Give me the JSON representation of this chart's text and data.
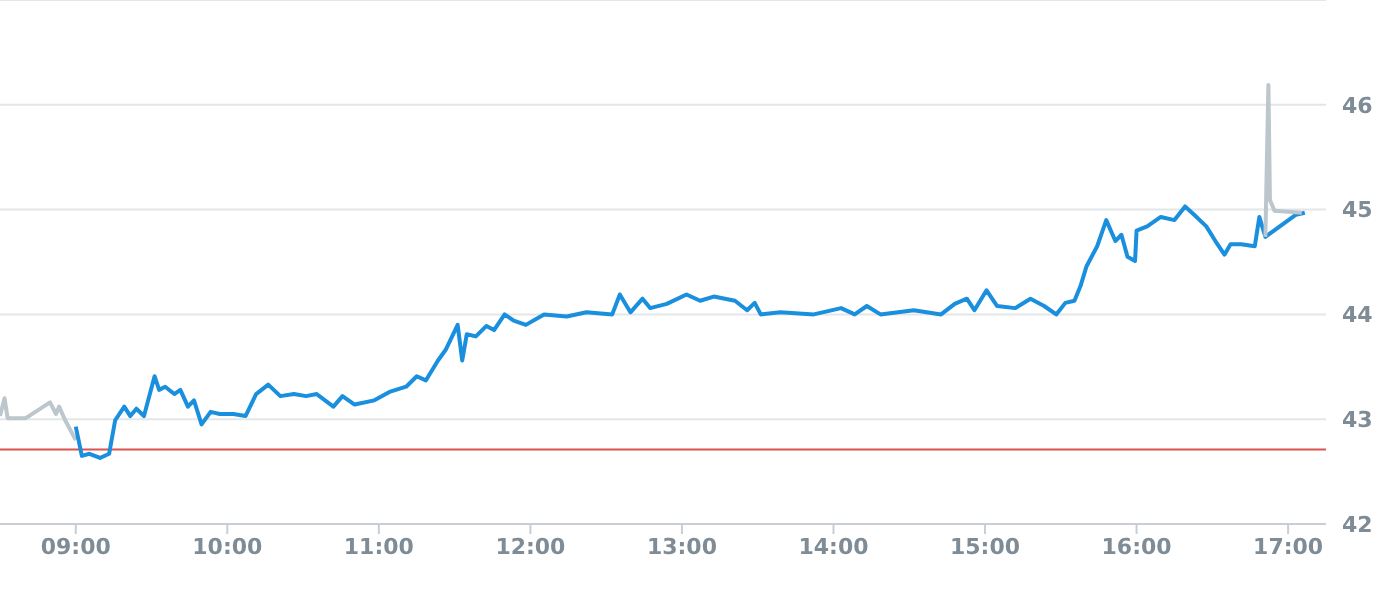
{
  "chart_data": {
    "type": "line",
    "series": [
      {
        "color": "#bcc6cd",
        "x": [
          8.5,
          8.53,
          8.55,
          8.67,
          8.83,
          8.87,
          8.89,
          8.93,
          9.0
        ],
        "values": [
          43.03,
          43.2,
          43.01,
          43.01,
          43.16,
          43.05,
          43.12,
          42.99,
          42.8
        ]
      },
      {
        "color": "#1a8fdd",
        "x": [
          9.0,
          9.04,
          9.09,
          9.16,
          9.22,
          9.26,
          9.32,
          9.36,
          9.4,
          9.45,
          9.52,
          9.55,
          9.59,
          9.65,
          9.69,
          9.74,
          9.78,
          9.83,
          9.89,
          9.95,
          10.04,
          10.12,
          10.19,
          10.27,
          10.35,
          10.44,
          10.52,
          10.59,
          10.7,
          10.76,
          10.84,
          10.97,
          11.07,
          11.18,
          11.25,
          11.31,
          11.39,
          11.44,
          11.52,
          11.55,
          11.58,
          11.64,
          11.71,
          11.76,
          11.83,
          11.89,
          11.97,
          12.09,
          12.24,
          12.37,
          12.54,
          12.59,
          12.66,
          12.74,
          12.79,
          12.9,
          13.03,
          13.12,
          13.21,
          13.35,
          13.43,
          13.48,
          13.52,
          13.65,
          13.87,
          14.05,
          14.14,
          14.22,
          14.31,
          14.53,
          14.71,
          14.8,
          14.88,
          14.93,
          15.01,
          15.08,
          15.2,
          15.3,
          15.39,
          15.47,
          15.53,
          15.59,
          15.63,
          15.67,
          15.74,
          15.8,
          15.86,
          15.9,
          15.94,
          15.99,
          16.0,
          16.07,
          16.16,
          16.25,
          16.32,
          16.38,
          16.46,
          16.52,
          16.58,
          16.62,
          16.69,
          16.78,
          16.81,
          16.85,
          17.05,
          17.11
        ],
        "values": [
          42.93,
          42.65,
          42.67,
          42.63,
          42.67,
          42.99,
          43.12,
          43.03,
          43.1,
          43.03,
          43.41,
          43.28,
          43.31,
          43.24,
          43.28,
          43.12,
          43.18,
          42.95,
          43.07,
          43.05,
          43.05,
          43.03,
          43.24,
          43.33,
          43.22,
          43.24,
          43.22,
          43.24,
          43.12,
          43.22,
          43.14,
          43.18,
          43.26,
          43.31,
          43.41,
          43.37,
          43.56,
          43.66,
          43.9,
          43.56,
          43.81,
          43.79,
          43.89,
          43.85,
          44.0,
          43.94,
          43.9,
          44.0,
          43.98,
          44.02,
          44.0,
          44.19,
          44.02,
          44.15,
          44.06,
          44.1,
          44.19,
          44.13,
          44.17,
          44.13,
          44.04,
          44.11,
          44.0,
          44.02,
          44.0,
          44.06,
          44.0,
          44.08,
          44.0,
          44.04,
          44.0,
          44.1,
          44.15,
          44.04,
          44.23,
          44.08,
          44.06,
          44.15,
          44.08,
          44.0,
          44.11,
          44.13,
          44.27,
          44.46,
          44.65,
          44.9,
          44.7,
          44.76,
          44.55,
          44.51,
          44.8,
          44.84,
          44.93,
          44.9,
          45.03,
          44.95,
          44.84,
          44.7,
          44.57,
          44.67,
          44.67,
          44.65,
          44.93,
          44.74,
          44.95,
          44.97
        ]
      },
      {
        "color": "#bcc6cd",
        "x": [
          16.85,
          16.86,
          16.87,
          16.88,
          16.91,
          17.09
        ],
        "values": [
          44.74,
          45.47,
          46.19,
          45.09,
          44.99,
          44.97
        ]
      }
    ],
    "xlim": [
      8.5,
      17.25
    ],
    "xticks": [
      {
        "value": 9,
        "label": "09:00"
      },
      {
        "value": 10,
        "label": "10:00"
      },
      {
        "value": 11,
        "label": "11:00"
      },
      {
        "value": 12,
        "label": "12:00"
      },
      {
        "value": 13,
        "label": "13:00"
      },
      {
        "value": 14,
        "label": "14:00"
      },
      {
        "value": 15,
        "label": "15:00"
      },
      {
        "value": 16,
        "label": "16:00"
      },
      {
        "value": 17,
        "label": "17:00"
      }
    ],
    "ylim": [
      42,
      47
    ],
    "yticks": [
      42,
      43,
      44,
      45,
      46
    ],
    "ref_lines": [
      {
        "axis": "y",
        "value": 42.71,
        "color": "#d9534f"
      }
    ],
    "grid": "y",
    "marker": "none",
    "line_style": "solid"
  }
}
